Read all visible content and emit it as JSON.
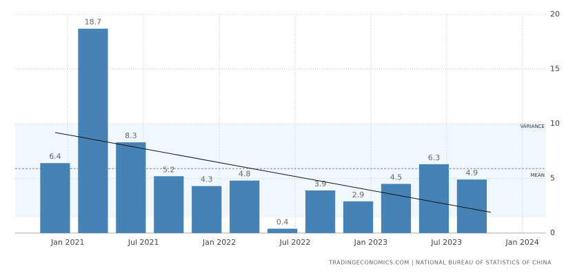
{
  "chart_data": {
    "type": "bar",
    "x": [
      "2020-12",
      "2021-03",
      "2021-06",
      "2021-09",
      "2021-12",
      "2022-03",
      "2022-06",
      "2022-09",
      "2022-12",
      "2023-03",
      "2023-06",
      "2023-09"
    ],
    "values": [
      6.4,
      18.7,
      8.3,
      5.2,
      4.3,
      4.8,
      0.4,
      3.9,
      2.9,
      4.5,
      6.3,
      4.9
    ],
    "color": "#4682b4",
    "xlim": [
      "2020-09",
      "2024-02"
    ],
    "xticks": [
      {
        "value": "2021-01",
        "label": "Jan 2021"
      },
      {
        "value": "2021-07",
        "label": "Jul 2021"
      },
      {
        "value": "2022-01",
        "label": "Jan 2022"
      },
      {
        "value": "2022-07",
        "label": "Jul 2022"
      },
      {
        "value": "2023-01",
        "label": "Jan 2023"
      },
      {
        "value": "2023-07",
        "label": "Jul 2023"
      },
      {
        "value": "2024-01",
        "label": "Jan 2024"
      }
    ],
    "ylim": [
      0,
      20
    ],
    "yticks": [
      0,
      5,
      10,
      15,
      20
    ],
    "grid": true,
    "variance": [
      1.4,
      10
    ],
    "variance_label": "VARIANCE",
    "mean": 5.9,
    "mean_label": "MEAN",
    "trend": {
      "x": [
        "2020-12",
        "2023-09"
      ],
      "values": [
        9.2,
        1.9
      ]
    },
    "source": "TRADINGECONOMICS.COM | NATIONAL BUREAU OF STATISTICS OF CHINA"
  }
}
